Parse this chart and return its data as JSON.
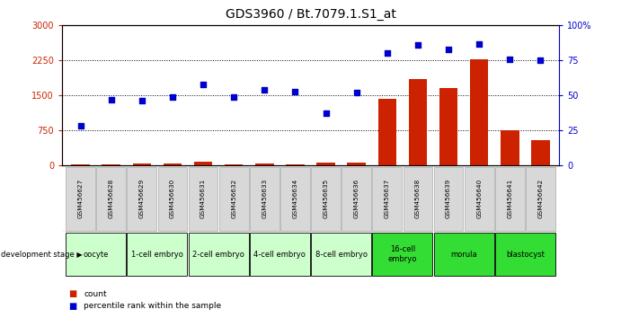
{
  "title": "GDS3960 / Bt.7079.1.S1_at",
  "samples": [
    "GSM456627",
    "GSM456628",
    "GSM456629",
    "GSM456630",
    "GSM456631",
    "GSM456632",
    "GSM456633",
    "GSM456634",
    "GSM456635",
    "GSM456636",
    "GSM456637",
    "GSM456638",
    "GSM456639",
    "GSM456640",
    "GSM456641",
    "GSM456642"
  ],
  "count_values": [
    25,
    30,
    35,
    40,
    75,
    30,
    35,
    30,
    50,
    55,
    1430,
    1850,
    1650,
    2270,
    760,
    550
  ],
  "percentile_values": [
    28,
    47,
    46,
    49,
    58,
    49,
    54,
    53,
    37,
    52,
    80,
    86,
    83,
    87,
    76,
    75
  ],
  "stage_groups": [
    {
      "label": "oocyte",
      "cols": 2,
      "color": "#ccffcc"
    },
    {
      "label": "1-cell embryo",
      "cols": 2,
      "color": "#ccffcc"
    },
    {
      "label": "2-cell embryo",
      "cols": 2,
      "color": "#ccffcc"
    },
    {
      "label": "4-cell embryo",
      "cols": 2,
      "color": "#ccffcc"
    },
    {
      "label": "8-cell embryo",
      "cols": 2,
      "color": "#ccffcc"
    },
    {
      "label": "16-cell\nembryo",
      "cols": 2,
      "color": "#33dd33"
    },
    {
      "label": "morula",
      "cols": 2,
      "color": "#33dd33"
    },
    {
      "label": "blastocyst",
      "cols": 2,
      "color": "#33dd33"
    }
  ],
  "left_ylim": [
    0,
    3000
  ],
  "right_ylim": [
    0,
    100
  ],
  "left_yticks": [
    0,
    750,
    1500,
    2250,
    3000
  ],
  "right_yticks": [
    0,
    25,
    50,
    75,
    100
  ],
  "bar_color": "#cc2200",
  "scatter_color": "#0000cc",
  "bg_color": "#ffffff",
  "title_fontsize": 10,
  "tick_fontsize": 7,
  "name_box_color": "#d8d8d8"
}
